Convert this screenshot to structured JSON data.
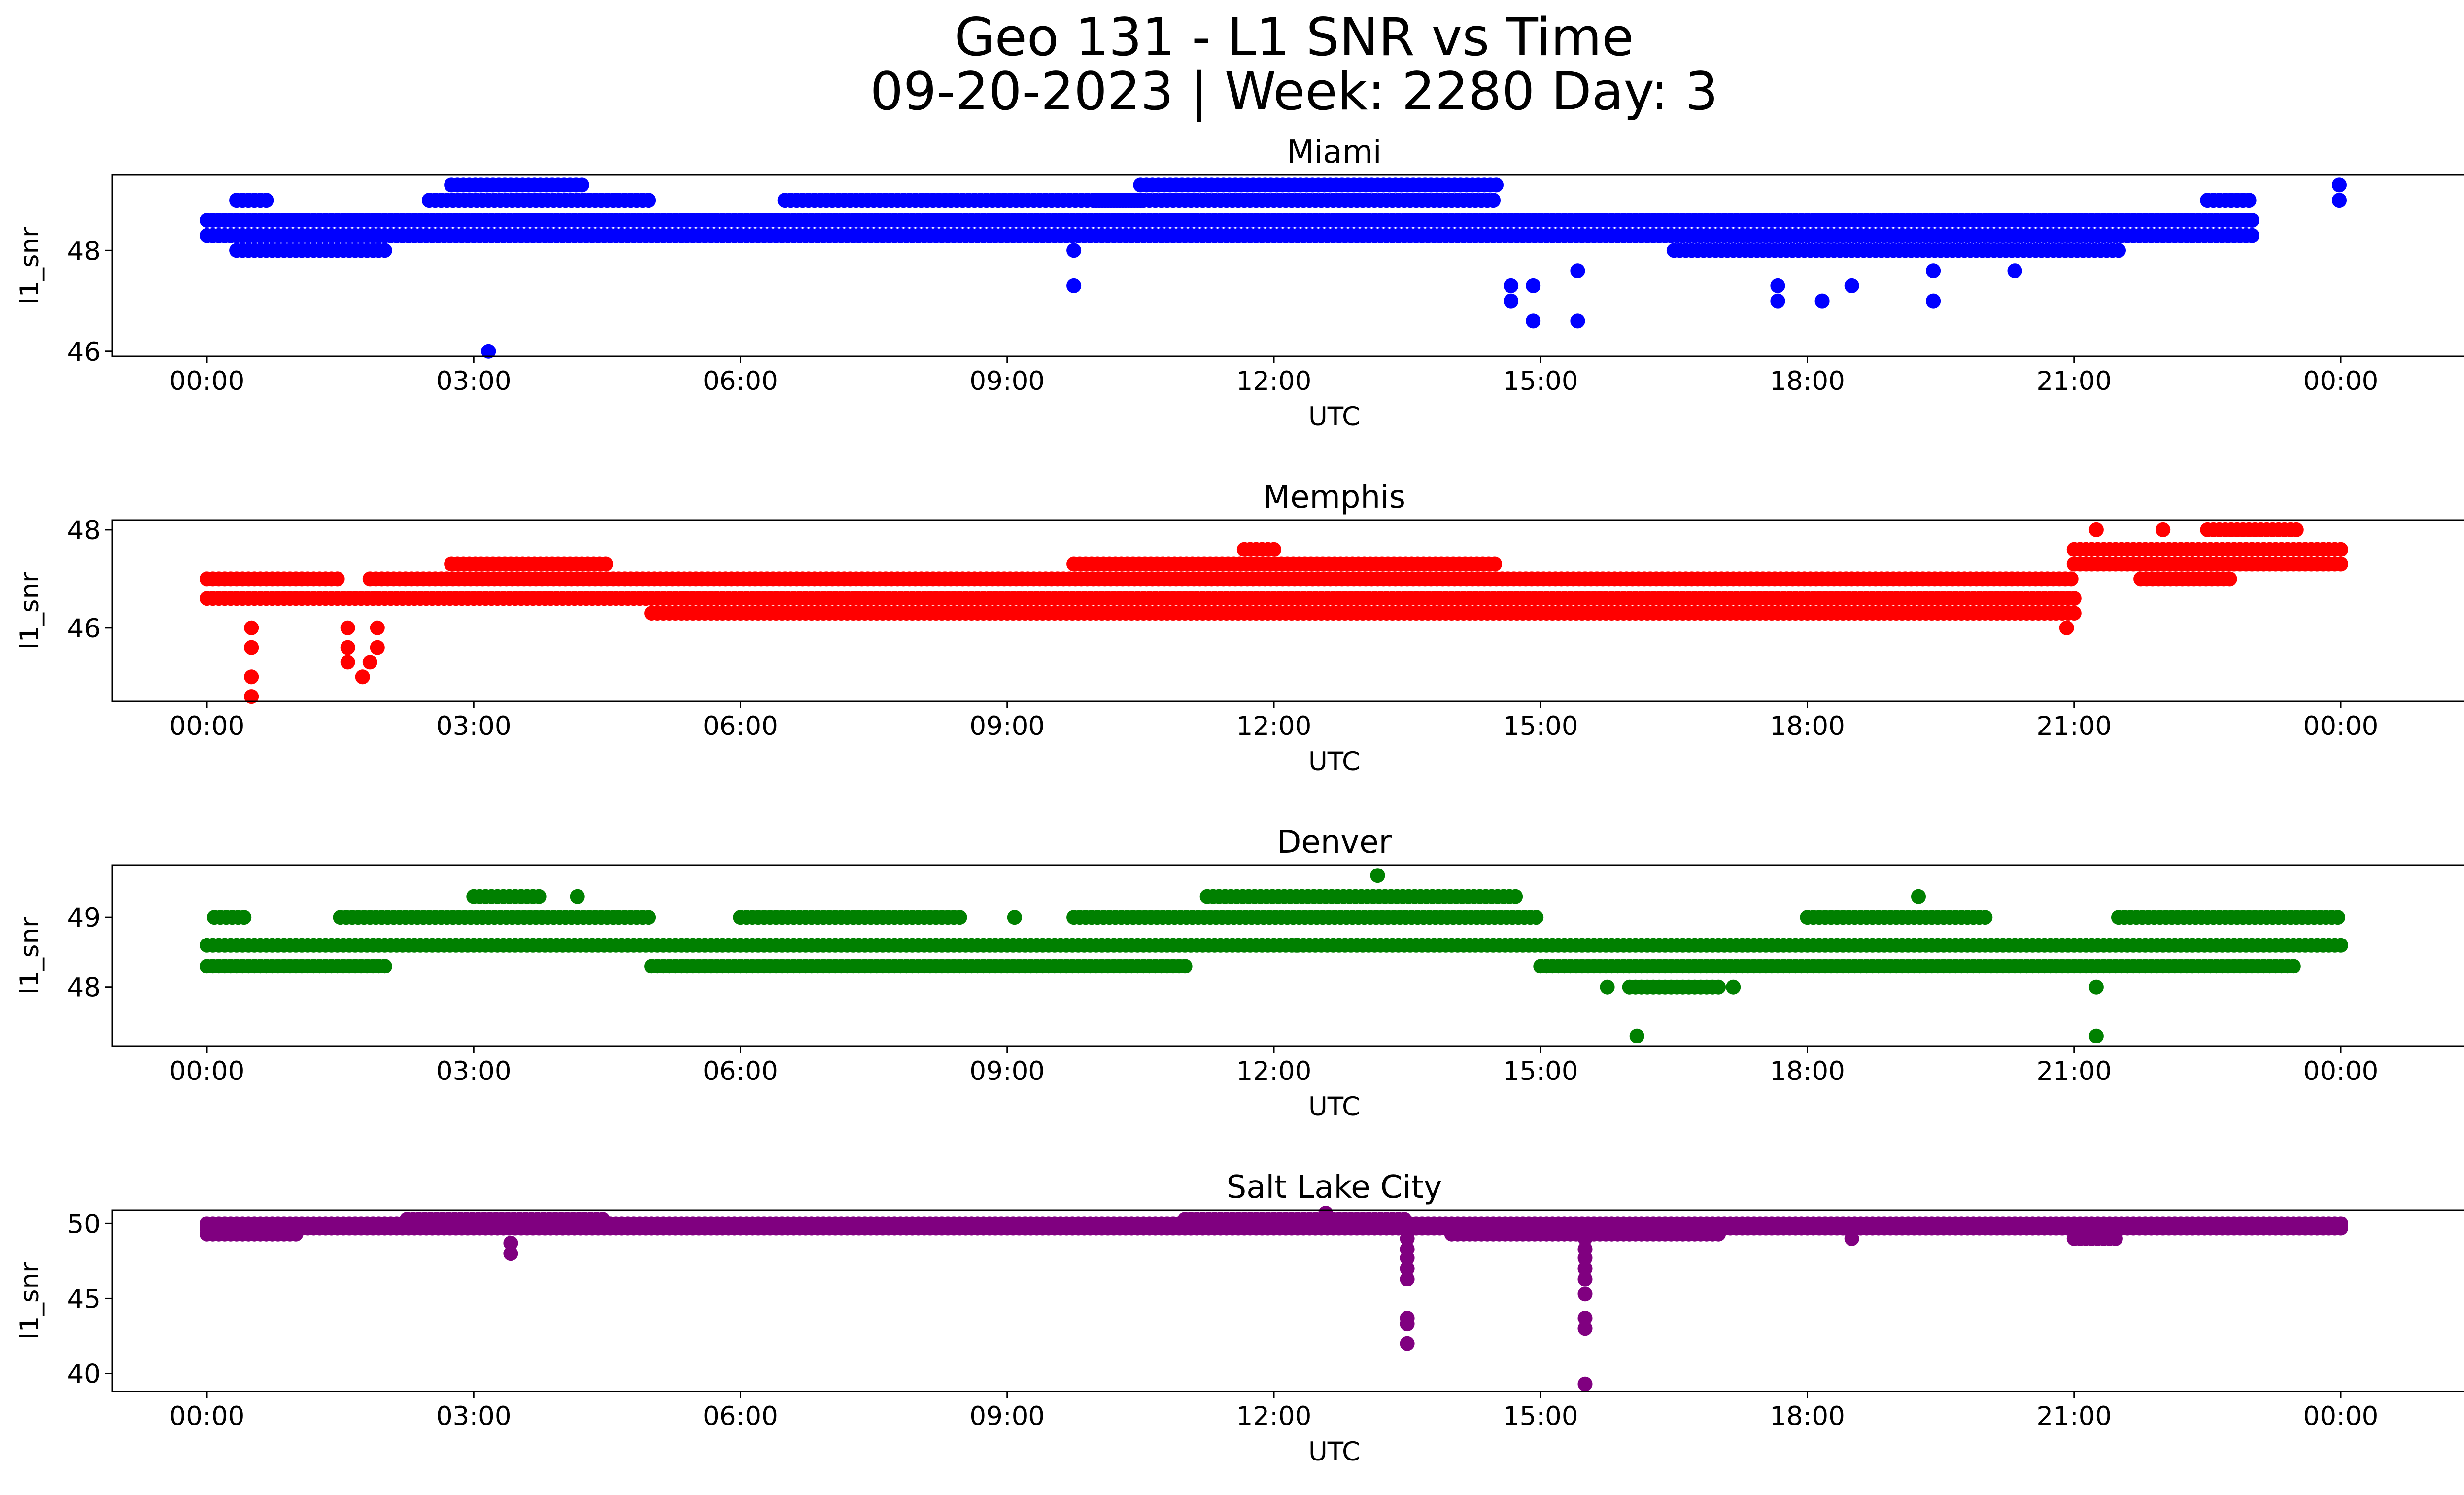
{
  "title_line1": "Geo 131 - L1 SNR vs Time",
  "title_line2": "09-20-2023 | Week: 2280 Day: 3",
  "chart_data": [
    {
      "type": "scatter",
      "title": "Miami",
      "xlabel": "UTC",
      "ylabel": "l1_snr",
      "color": "#0000ff",
      "x_ticks": [
        "00:00",
        "03:00",
        "06:00",
        "09:00",
        "12:00",
        "15:00",
        "18:00",
        "21:00",
        "00:00"
      ],
      "y_ticks": [
        46,
        48
      ],
      "ylim": [
        45.9,
        49.5
      ],
      "bands": [
        {
          "start": "00:00",
          "end": "23:00",
          "value": 48.6
        },
        {
          "start": "00:00",
          "end": "23:00",
          "value": 48.3
        },
        {
          "start": "02:45",
          "end": "04:15",
          "value": 49.3
        },
        {
          "start": "02:30",
          "end": "05:00",
          "value": 49.0
        },
        {
          "start": "06:30",
          "end": "10:30",
          "value": 49.0
        },
        {
          "start": "10:30",
          "end": "14:30",
          "value": 49.3
        },
        {
          "start": "10:00",
          "end": "14:30",
          "value": 49.0
        },
        {
          "start": "00:20",
          "end": "00:40",
          "value": 49.0
        },
        {
          "start": "16:30",
          "end": "21:30",
          "value": 48.0
        },
        {
          "start": "00:20",
          "end": "02:00",
          "value": 48.0
        },
        {
          "start": "22:30",
          "end": "23:00",
          "value": 49.0
        }
      ],
      "outliers": [
        {
          "t": "03:10",
          "y": 46.0
        },
        {
          "t": "09:45",
          "y": 47.3
        },
        {
          "t": "09:45",
          "y": 48.0
        },
        {
          "t": "14:40",
          "y": 47.0
        },
        {
          "t": "14:40",
          "y": 47.3
        },
        {
          "t": "14:55",
          "y": 46.6
        },
        {
          "t": "14:55",
          "y": 47.3
        },
        {
          "t": "15:25",
          "y": 46.6
        },
        {
          "t": "15:25",
          "y": 47.6
        },
        {
          "t": "17:40",
          "y": 47.0
        },
        {
          "t": "17:40",
          "y": 47.3
        },
        {
          "t": "18:10",
          "y": 47.0
        },
        {
          "t": "18:30",
          "y": 47.3
        },
        {
          "t": "19:25",
          "y": 47.0
        },
        {
          "t": "19:25",
          "y": 47.6
        },
        {
          "t": "20:20",
          "y": 47.6
        },
        {
          "t": "23:59",
          "y": 49.0
        },
        {
          "t": "23:59",
          "y": 49.3
        }
      ]
    },
    {
      "type": "scatter",
      "title": "Memphis",
      "xlabel": "UTC",
      "ylabel": "l1_snr",
      "color": "#ff0000",
      "x_ticks": [
        "00:00",
        "03:00",
        "06:00",
        "09:00",
        "12:00",
        "15:00",
        "18:00",
        "21:00",
        "00:00"
      ],
      "y_ticks": [
        46,
        48
      ],
      "ylim": [
        44.5,
        48.2
      ],
      "bands": [
        {
          "start": "00:00",
          "end": "21:00",
          "value": 46.6
        },
        {
          "start": "00:00",
          "end": "01:30",
          "value": 47.0
        },
        {
          "start": "01:50",
          "end": "21:00",
          "value": 47.0
        },
        {
          "start": "05:00",
          "end": "21:00",
          "value": 46.3
        },
        {
          "start": "02:45",
          "end": "04:30",
          "value": 47.3
        },
        {
          "start": "09:45",
          "end": "14:30",
          "value": 47.3
        },
        {
          "start": "11:40",
          "end": "12:00",
          "value": 47.6
        },
        {
          "start": "21:00",
          "end": "24:00",
          "value": 47.6
        },
        {
          "start": "21:00",
          "end": "24:00",
          "value": 47.3
        },
        {
          "start": "22:30",
          "end": "23:30",
          "value": 48.0
        },
        {
          "start": "21:45",
          "end": "22:45",
          "value": 47.0
        }
      ],
      "outliers": [
        {
          "t": "00:30",
          "y": 44.6
        },
        {
          "t": "00:30",
          "y": 45.0
        },
        {
          "t": "00:30",
          "y": 45.6
        },
        {
          "t": "00:30",
          "y": 46.0
        },
        {
          "t": "01:35",
          "y": 45.3
        },
        {
          "t": "01:35",
          "y": 45.6
        },
        {
          "t": "01:35",
          "y": 46.0
        },
        {
          "t": "01:45",
          "y": 45.0
        },
        {
          "t": "01:50",
          "y": 45.3
        },
        {
          "t": "01:55",
          "y": 45.6
        },
        {
          "t": "01:55",
          "y": 46.0
        },
        {
          "t": "20:55",
          "y": 46.0
        },
        {
          "t": "21:15",
          "y": 48.0
        },
        {
          "t": "22:00",
          "y": 48.0
        }
      ]
    },
    {
      "type": "scatter",
      "title": "Denver",
      "xlabel": "UTC",
      "ylabel": "l1_snr",
      "color": "#008000",
      "x_ticks": [
        "00:00",
        "03:00",
        "06:00",
        "09:00",
        "12:00",
        "15:00",
        "18:00",
        "21:00",
        "00:00"
      ],
      "y_ticks": [
        48,
        49
      ],
      "ylim": [
        47.15,
        49.75
      ],
      "bands": [
        {
          "start": "00:00",
          "end": "24:00",
          "value": 48.6
        },
        {
          "start": "00:00",
          "end": "02:00",
          "value": 48.3
        },
        {
          "start": "05:00",
          "end": "11:00",
          "value": 48.3
        },
        {
          "start": "15:00",
          "end": "23:30",
          "value": 48.3
        },
        {
          "start": "01:30",
          "end": "05:00",
          "value": 49.0
        },
        {
          "start": "06:00",
          "end": "08:30",
          "value": 49.0
        },
        {
          "start": "09:45",
          "end": "15:00",
          "value": 49.0
        },
        {
          "start": "21:30",
          "end": "24:00",
          "value": 49.0
        },
        {
          "start": "18:00",
          "end": "20:00",
          "value": 49.0
        },
        {
          "start": "00:05",
          "end": "00:25",
          "value": 49.0
        },
        {
          "start": "11:15",
          "end": "14:45",
          "value": 49.3
        },
        {
          "start": "03:00",
          "end": "03:45",
          "value": 49.3
        },
        {
          "start": "16:00",
          "end": "17:00",
          "value": 48.0
        }
      ],
      "outliers": [
        {
          "t": "04:10",
          "y": 49.3
        },
        {
          "t": "13:10",
          "y": 49.6
        },
        {
          "t": "16:05",
          "y": 47.3
        },
        {
          "t": "15:45",
          "y": 48.0
        },
        {
          "t": "17:10",
          "y": 48.0
        },
        {
          "t": "19:15",
          "y": 49.3
        },
        {
          "t": "21:15",
          "y": 47.3
        },
        {
          "t": "21:15",
          "y": 48.0
        },
        {
          "t": "09:05",
          "y": 49.0
        },
        {
          "t": "12:15",
          "y": 48.6
        }
      ]
    },
    {
      "type": "scatter",
      "title": "Salt Lake City",
      "xlabel": "UTC",
      "ylabel": "l1_snr",
      "color": "#800080",
      "x_ticks": [
        "00:00",
        "03:00",
        "06:00",
        "09:00",
        "12:00",
        "15:00",
        "18:00",
        "21:00",
        "00:00"
      ],
      "y_ticks": [
        40,
        45,
        50
      ],
      "ylim": [
        38.8,
        50.9
      ],
      "bands": [
        {
          "start": "00:00",
          "end": "24:00",
          "value": 49.7
        },
        {
          "start": "00:00",
          "end": "24:00",
          "value": 50.0
        },
        {
          "start": "00:00",
          "end": "01:00",
          "value": 49.3
        },
        {
          "start": "02:15",
          "end": "04:30",
          "value": 50.3
        },
        {
          "start": "11:00",
          "end": "13:30",
          "value": 50.3
        },
        {
          "start": "14:00",
          "end": "17:00",
          "value": 49.3
        },
        {
          "start": "21:00",
          "end": "21:30",
          "value": 49.0
        }
      ],
      "outliers": [
        {
          "t": "03:25",
          "y": 48.0
        },
        {
          "t": "03:25",
          "y": 48.7
        },
        {
          "t": "13:30",
          "y": 42.0
        },
        {
          "t": "13:30",
          "y": 43.3
        },
        {
          "t": "13:30",
          "y": 43.7
        },
        {
          "t": "13:30",
          "y": 46.3
        },
        {
          "t": "13:30",
          "y": 47.0
        },
        {
          "t": "13:30",
          "y": 47.7
        },
        {
          "t": "13:30",
          "y": 48.3
        },
        {
          "t": "13:30",
          "y": 49.0
        },
        {
          "t": "15:30",
          "y": 39.3
        },
        {
          "t": "15:30",
          "y": 43.0
        },
        {
          "t": "15:30",
          "y": 43.7
        },
        {
          "t": "15:30",
          "y": 45.3
        },
        {
          "t": "15:30",
          "y": 46.3
        },
        {
          "t": "15:30",
          "y": 47.0
        },
        {
          "t": "15:30",
          "y": 47.7
        },
        {
          "t": "15:30",
          "y": 48.3
        },
        {
          "t": "15:30",
          "y": 49.0
        },
        {
          "t": "18:30",
          "y": 49.0
        },
        {
          "t": "12:35",
          "y": 50.7
        }
      ]
    }
  ]
}
